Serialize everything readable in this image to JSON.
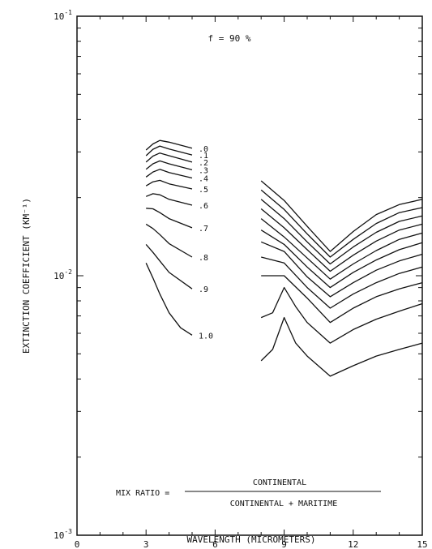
{
  "chart_data": {
    "type": "line",
    "title": "f = 90 %",
    "xlabel": "WAVELENGTH (MICROMETERS)",
    "ylabel": "EXTINCTION COEFFICIENT (KM⁻¹)",
    "xlim": [
      0,
      15
    ],
    "ylim": [
      0.001,
      0.1
    ],
    "yscale": "log",
    "grid": false,
    "x_ticks": [
      "0",
      "3",
      "6",
      "9",
      "12",
      "15"
    ],
    "y_ticks": [
      {
        "base": "10",
        "exp": "-1",
        "value": 0.1
      },
      {
        "base": "10",
        "exp": "-2",
        "value": 0.01
      },
      {
        "base": "10",
        "exp": "-3",
        "value": 0.001
      }
    ],
    "formula": {
      "lhs": "MIX RATIO =",
      "numerator": "CONTINENTAL",
      "denominator": "CONTINENTAL + MARITIME"
    },
    "series": [
      {
        "name": ".0",
        "short": {
          "x": [
            3,
            3.3,
            3.6,
            4,
            5
          ],
          "y": [
            0.0305,
            0.0322,
            0.0332,
            0.0327,
            0.031
          ]
        },
        "long": {
          "x": [
            8,
            9,
            10,
            11,
            12,
            13,
            14,
            15
          ],
          "y": [
            0.0232,
            0.0195,
            0.0155,
            0.0124,
            0.0148,
            0.0172,
            0.0188,
            0.0197
          ]
        }
      },
      {
        "name": ".1",
        "short": {
          "x": [
            3,
            3.3,
            3.6,
            4,
            5
          ],
          "y": [
            0.029,
            0.0307,
            0.0316,
            0.0308,
            0.0292
          ]
        },
        "long": {
          "x": [
            8,
            9,
            10,
            11,
            12,
            13,
            14,
            15
          ],
          "y": [
            0.0214,
            0.018,
            0.0145,
            0.0118,
            0.0138,
            0.0159,
            0.0175,
            0.0183
          ]
        }
      },
      {
        "name": ".2",
        "short": {
          "x": [
            3,
            3.3,
            3.6,
            4,
            5
          ],
          "y": [
            0.0274,
            0.0289,
            0.0297,
            0.029,
            0.0274
          ]
        },
        "long": {
          "x": [
            8,
            9,
            10,
            11,
            12,
            13,
            14,
            15
          ],
          "y": [
            0.0197,
            0.0166,
            0.0135,
            0.0111,
            0.0129,
            0.0147,
            0.0162,
            0.017
          ]
        }
      },
      {
        "name": ".3",
        "short": {
          "x": [
            3,
            3.3,
            3.6,
            4,
            5
          ],
          "y": [
            0.0257,
            0.027,
            0.0277,
            0.027,
            0.0256
          ]
        },
        "long": {
          "x": [
            8,
            9,
            10,
            11,
            12,
            13,
            14,
            15
          ],
          "y": [
            0.0181,
            0.0153,
            0.0126,
            0.0104,
            0.012,
            0.0136,
            0.015,
            0.0158
          ]
        }
      },
      {
        "name": ".4",
        "short": {
          "x": [
            3,
            3.3,
            3.6,
            4,
            5
          ],
          "y": [
            0.024,
            0.0251,
            0.0257,
            0.025,
            0.0238
          ]
        },
        "long": {
          "x": [
            8,
            9,
            10,
            11,
            12,
            13,
            14,
            15
          ],
          "y": [
            0.0166,
            0.0141,
            0.0117,
            0.0097,
            0.0111,
            0.0125,
            0.0138,
            0.0146
          ]
        }
      },
      {
        "name": ".5",
        "short": {
          "x": [
            3,
            3.3,
            3.6,
            4,
            5
          ],
          "y": [
            0.0222,
            0.023,
            0.0233,
            0.0226,
            0.0216
          ]
        },
        "long": {
          "x": [
            8,
            9,
            10,
            11,
            12,
            13,
            14,
            15
          ],
          "y": [
            0.015,
            0.0132,
            0.0108,
            0.009,
            0.0103,
            0.0115,
            0.0126,
            0.0134
          ]
        }
      },
      {
        "name": ".6",
        "short": {
          "x": [
            3,
            3.3,
            3.6,
            4,
            5
          ],
          "y": [
            0.0202,
            0.0207,
            0.0205,
            0.0197,
            0.0187
          ]
        },
        "long": {
          "x": [
            8,
            9,
            10,
            11,
            12,
            13,
            14,
            15
          ],
          "y": [
            0.0135,
            0.0124,
            0.0099,
            0.0083,
            0.0094,
            0.0105,
            0.0114,
            0.0121
          ]
        }
      },
      {
        "name": ".7",
        "short": {
          "x": [
            3,
            3.3,
            3.6,
            4,
            5
          ],
          "y": [
            0.0182,
            0.0181,
            0.0175,
            0.0166,
            0.0153
          ]
        },
        "long": {
          "x": [
            8,
            9,
            10,
            11,
            12,
            13,
            14,
            15
          ],
          "y": [
            0.0118,
            0.0112,
            0.009,
            0.0075,
            0.0085,
            0.0094,
            0.0102,
            0.0108
          ]
        }
      },
      {
        "name": ".8",
        "short": {
          "x": [
            3,
            3.3,
            3.6,
            4,
            5
          ],
          "y": [
            0.0158,
            0.0152,
            0.0144,
            0.0133,
            0.0118
          ]
        },
        "long": {
          "x": [
            8,
            9,
            10,
            11,
            12,
            13,
            14,
            15
          ],
          "y": [
            0.01,
            0.01,
            0.0082,
            0.0066,
            0.0075,
            0.0083,
            0.0089,
            0.0094
          ]
        }
      },
      {
        "name": ".9",
        "short": {
          "x": [
            3,
            3.3,
            3.6,
            4,
            5
          ],
          "y": [
            0.0132,
            0.0123,
            0.0114,
            0.0103,
            0.0089
          ]
        },
        "long": {
          "x": [
            8,
            8.5,
            9,
            9.5,
            10,
            11,
            12,
            13,
            14,
            15
          ],
          "y": [
            0.0069,
            0.0072,
            0.009,
            0.0076,
            0.0066,
            0.0055,
            0.0062,
            0.0068,
            0.0073,
            0.0078
          ]
        }
      },
      {
        "name": "1.0",
        "short": {
          "x": [
            3,
            3.3,
            3.6,
            4,
            4.5,
            5
          ],
          "y": [
            0.0112,
            0.0098,
            0.0085,
            0.0072,
            0.0063,
            0.0059
          ]
        },
        "long": {
          "x": [
            8,
            8.5,
            9,
            9.5,
            10,
            11,
            12,
            13,
            14,
            15
          ],
          "y": [
            0.0047,
            0.0052,
            0.0069,
            0.0055,
            0.0049,
            0.0041,
            0.0045,
            0.0049,
            0.0052,
            0.0055
          ]
        }
      }
    ]
  }
}
